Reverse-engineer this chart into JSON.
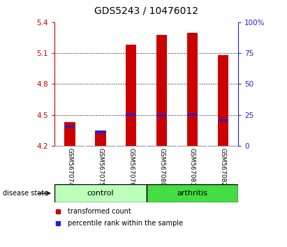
{
  "title": "GDS5243 / 10476012",
  "samples": [
    "GSM567074",
    "GSM567075",
    "GSM567076",
    "GSM567080",
    "GSM567081",
    "GSM567082"
  ],
  "groups": [
    "control",
    "control",
    "control",
    "arthritis",
    "arthritis",
    "arthritis"
  ],
  "red_values": [
    4.43,
    4.35,
    5.18,
    5.28,
    5.3,
    5.08
  ],
  "blue_values": [
    4.385,
    4.335,
    4.503,
    4.493,
    4.503,
    4.448
  ],
  "ylim_left": [
    4.2,
    5.4
  ],
  "ylim_right": [
    0,
    100
  ],
  "yticks_left": [
    4.2,
    4.5,
    4.8,
    5.1,
    5.4
  ],
  "yticks_right": [
    0,
    25,
    50,
    75,
    100
  ],
  "ytick_labels_right": [
    "0",
    "25",
    "50",
    "75",
    "100%"
  ],
  "bar_bottom": 4.2,
  "red_color": "#cc0000",
  "blue_color": "#2222cc",
  "control_color": "#bbffbb",
  "arthritis_color": "#44dd44",
  "gray_color": "#c8c8c8",
  "title_fontsize": 10,
  "tick_fontsize": 7.5,
  "sample_fontsize": 6.5,
  "group_fontsize": 8,
  "legend_fontsize": 7
}
